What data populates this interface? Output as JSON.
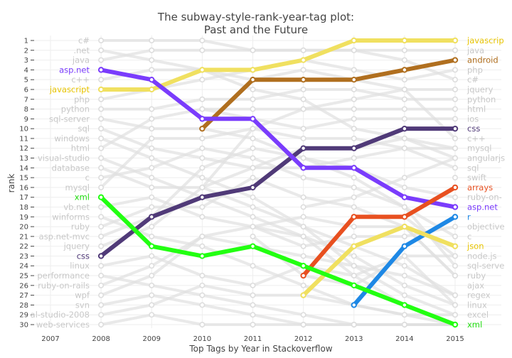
{
  "chart_data": {
    "type": "line",
    "title": "The subway-style-rank-year-tag plot:",
    "subtitle": "Past and the Future",
    "xlabel": "Top Tags by Year in Stackoverflow",
    "ylabel": "rank",
    "x_ticks": [
      2007,
      2008,
      2009,
      2010,
      2011,
      2012,
      2013,
      2014,
      2015
    ],
    "xlim": [
      2007,
      2015
    ],
    "ylim": [
      1,
      30
    ],
    "y_reversed": true,
    "years": [
      2008,
      2009,
      2010,
      2011,
      2012,
      2013,
      2014,
      2015
    ],
    "left_labels": [
      "c#",
      ".net",
      "java",
      "asp.net",
      "c++",
      "javascript",
      "php",
      "python",
      "sql-server",
      "sql",
      "windows",
      "html",
      "visual-studio",
      "database",
      "c",
      "mysql",
      "xml",
      "vb.net",
      "winforms",
      "ruby",
      "asp.net-mvc",
      "jquery",
      "css",
      "linux",
      "performance",
      "ruby-on-rails",
      "wpf",
      "svn",
      "al-studio-2008",
      "web-services"
    ],
    "right_labels": [
      "javascrip",
      "java",
      "android",
      "php",
      "c#",
      "jquery",
      "python",
      "html",
      "ios",
      "css",
      "c++",
      "mysql",
      "angularjs",
      "sql",
      "swift",
      "arrays",
      "ruby-on-",
      "asp.net",
      "r",
      "objective",
      "c",
      "json",
      "node.js",
      "sql-serve",
      "ruby",
      "ajax",
      "regex",
      "linux",
      "excel",
      "xml"
    ],
    "background_series": [
      [
        1,
        1,
        1,
        2,
        2,
        2,
        3,
        5
      ],
      [
        2,
        3,
        4,
        6,
        7,
        10,
        11,
        13
      ],
      [
        3,
        2,
        2,
        2,
        2,
        2,
        2,
        2
      ],
      [
        5,
        4,
        4,
        5,
        4,
        5,
        6,
        11
      ],
      [
        7,
        6,
        5,
        4,
        3,
        4,
        5,
        4
      ],
      [
        8,
        8,
        7,
        7,
        6,
        6,
        7,
        7
      ],
      [
        9,
        10,
        10,
        11,
        13,
        15,
        18,
        24
      ],
      [
        10,
        12,
        13,
        14,
        14,
        13,
        12,
        14
      ],
      [
        11,
        13,
        15,
        17,
        20,
        24,
        27,
        29
      ],
      [
        12,
        9,
        8,
        8,
        8,
        8,
        8,
        8
      ],
      [
        13,
        15,
        17,
        19,
        21,
        25,
        28,
        30
      ],
      [
        14,
        16,
        16,
        18,
        20,
        22,
        24,
        27
      ],
      [
        15,
        14,
        12,
        13,
        15,
        16,
        18,
        21
      ],
      [
        16,
        11,
        11,
        10,
        11,
        11,
        12,
        12
      ],
      [
        18,
        17,
        19,
        20,
        21,
        23,
        26,
        28
      ],
      [
        19,
        21,
        22,
        24,
        26,
        28,
        29,
        30
      ],
      [
        20,
        18,
        18,
        15,
        17,
        18,
        20,
        25
      ],
      [
        21,
        19,
        14,
        12,
        13,
        14,
        16,
        17
      ],
      [
        22,
        20,
        16,
        10,
        8,
        7,
        6,
        6
      ],
      [
        24,
        23,
        25,
        26,
        24,
        25,
        23,
        28
      ],
      [
        25,
        26,
        27,
        28,
        29,
        30,
        30,
        30
      ],
      [
        26,
        24,
        21,
        20,
        19,
        20,
        20,
        25
      ],
      [
        27,
        25,
        21,
        22,
        23,
        24,
        25,
        27
      ],
      [
        28,
        27,
        28,
        29,
        30,
        30,
        30,
        30
      ],
      [
        29,
        28,
        26,
        27,
        27,
        28,
        29,
        29
      ],
      [
        30,
        29,
        30,
        30,
        30,
        30,
        30,
        30
      ],
      [
        null,
        null,
        8,
        9,
        10,
        9,
        9,
        9
      ],
      [
        null,
        null,
        16,
        14,
        12,
        12,
        11,
        12
      ],
      [
        null,
        null,
        null,
        null,
        null,
        null,
        null,
        15
      ],
      [
        null,
        null,
        null,
        null,
        18,
        17,
        15,
        13
      ],
      [
        null,
        null,
        null,
        20,
        22,
        21,
        21,
        20
      ],
      [
        null,
        null,
        null,
        21,
        25,
        26,
        23,
        23
      ],
      [
        null,
        null,
        null,
        null,
        null,
        null,
        19,
        23
      ]
    ],
    "series": [
      {
        "name": "javascript",
        "left_label": "javascript",
        "right_label": "javascrip",
        "color": "#f0e060",
        "values": [
          6,
          6,
          4,
          4,
          3,
          1,
          1,
          1
        ]
      },
      {
        "name": "android",
        "right_label": "android",
        "color": "#b06f1f",
        "values": [
          null,
          null,
          10,
          5,
          5,
          5,
          4,
          3
        ]
      },
      {
        "name": "css",
        "left_label": "css",
        "right_label": "css",
        "color": "#503a78",
        "values": [
          23,
          19,
          17,
          16,
          12,
          12,
          10,
          10
        ]
      },
      {
        "name": "asp.net",
        "left_label": "asp.net",
        "right_label": "asp.net",
        "color": "#7a3cfc",
        "values": [
          4,
          5,
          9,
          9,
          14,
          14,
          17,
          18
        ]
      },
      {
        "name": "arrays",
        "right_label": "arrays",
        "color": "#e85020",
        "values": [
          null,
          null,
          null,
          null,
          25,
          19,
          19,
          16
        ]
      },
      {
        "name": "r",
        "right_label": "r",
        "color": "#1e88e5",
        "values": [
          null,
          null,
          null,
          null,
          null,
          28,
          22,
          19
        ]
      },
      {
        "name": "json",
        "right_label": "json",
        "color": "#f0e060",
        "values": [
          null,
          null,
          null,
          null,
          27,
          22,
          20,
          22
        ]
      },
      {
        "name": "xml",
        "left_label": "xml",
        "right_label": "xml",
        "color": "#22ff11",
        "values": [
          17,
          22,
          23,
          22,
          24,
          26,
          28,
          30
        ]
      }
    ]
  }
}
